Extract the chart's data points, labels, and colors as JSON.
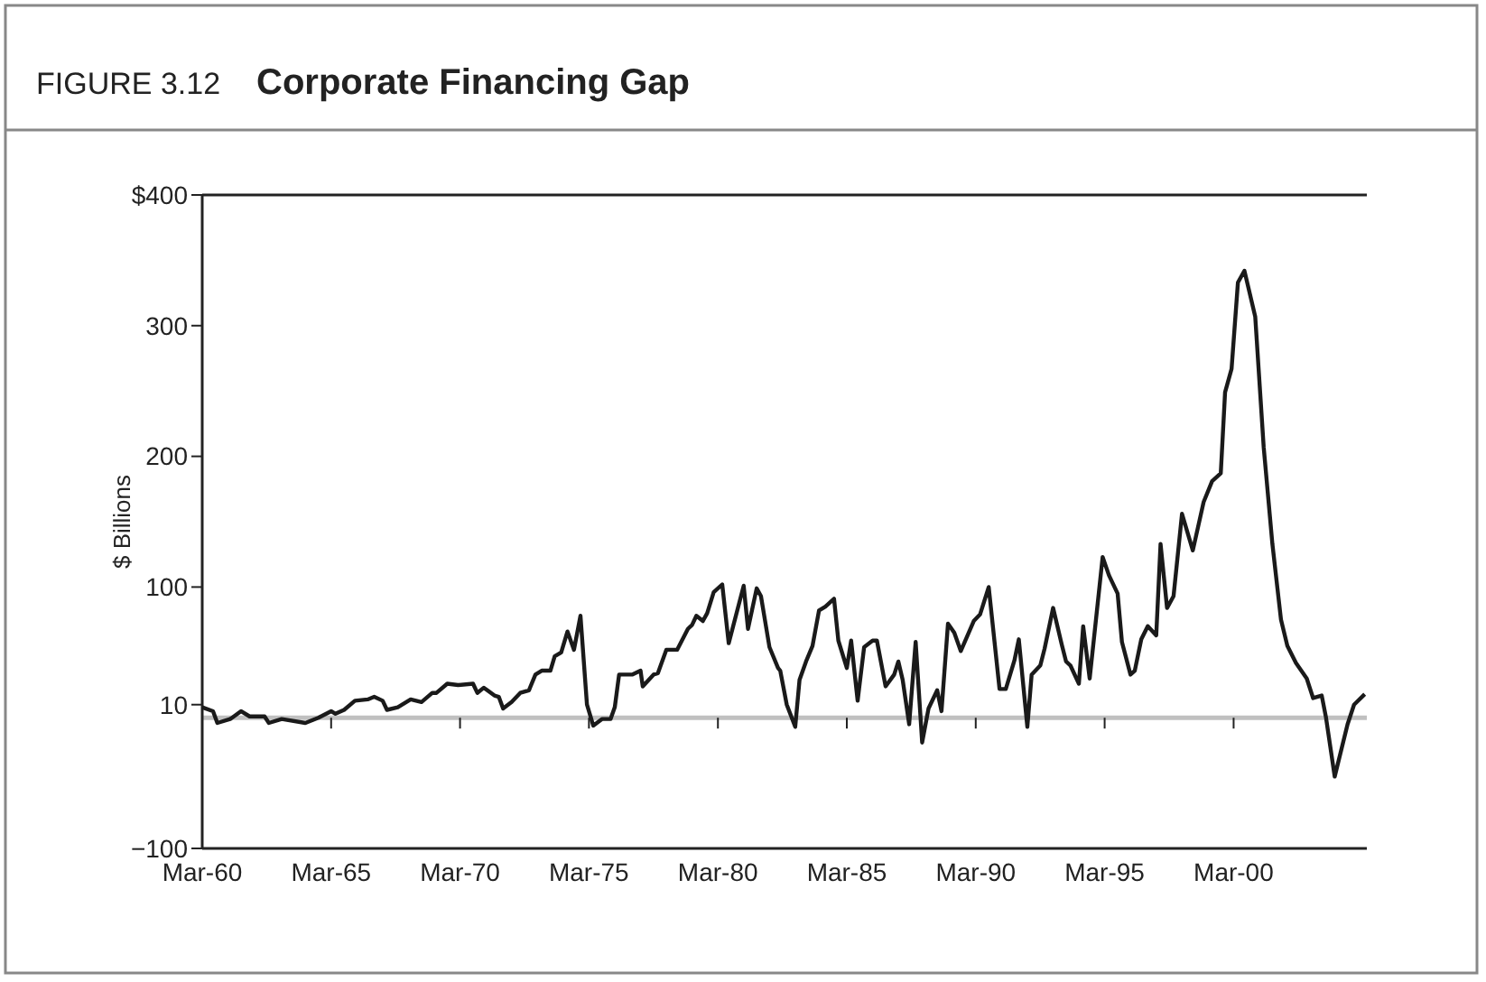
{
  "chart_data": {
    "type": "line",
    "title": "Corporate Financing Gap",
    "subtitle": "FIGURE 3.12",
    "ylabel": "$ Billions",
    "x": [
      "1960-03",
      "1960-08",
      "1960-10",
      "1961-04",
      "1961-09",
      "1962-01",
      "1962-08",
      "1962-10",
      "1963-04",
      "1964-03",
      "1964-09",
      "1965-03",
      "1965-05",
      "1965-09",
      "1966-02",
      "1966-08",
      "1966-11",
      "1967-03",
      "1967-05",
      "1967-10",
      "1968-04",
      "1968-09",
      "1969-02",
      "1969-04",
      "1969-09",
      "1970-02",
      "1970-09",
      "1970-11",
      "1971-02",
      "1971-07",
      "1971-09",
      "1971-11",
      "1972-03",
      "1972-07",
      "1972-11",
      "1973-02",
      "1973-05",
      "1973-09",
      "1973-11",
      "1974-02",
      "1974-05",
      "1974-08",
      "1974-11",
      "1975-02",
      "1975-05",
      "1975-09",
      "1976-01",
      "1976-03",
      "1976-05",
      "1976-09",
      "1976-11",
      "1977-03",
      "1977-04",
      "1977-09",
      "1977-11",
      "1978-03",
      "1978-08",
      "1979-01",
      "1979-03",
      "1979-05",
      "1979-08",
      "1979-10",
      "1980-01",
      "1980-05",
      "1980-08",
      "1981-03",
      "1981-05",
      "1981-09",
      "1981-11",
      "1982-03",
      "1982-07",
      "1982-08",
      "1982-11",
      "1983-03",
      "1983-05",
      "1983-08",
      "1983-11",
      "1984-02",
      "1984-05",
      "1984-09",
      "1984-11",
      "1985-03",
      "1985-05",
      "1985-08",
      "1985-11",
      "1986-03",
      "1986-05",
      "1986-09",
      "1987-01",
      "1987-03",
      "1987-05",
      "1987-08",
      "1987-11",
      "1988-02",
      "1988-05",
      "1988-09",
      "1988-11",
      "1989-02",
      "1989-05",
      "1989-08",
      "1990-02",
      "1990-05",
      "1990-09",
      "1991-02",
      "1991-05",
      "1991-09",
      "1991-11",
      "1992-03",
      "1992-05",
      "1992-09",
      "1992-11",
      "1993-03",
      "1993-07",
      "1993-09",
      "1993-11",
      "1994-03",
      "1994-05",
      "1994-08",
      "1995-02",
      "1995-05",
      "1995-09",
      "1995-11",
      "1996-03",
      "1996-05",
      "1996-08",
      "1996-11",
      "1997-03",
      "1997-05",
      "1997-08",
      "1997-11",
      "1998-03",
      "1998-08",
      "1999-01",
      "1999-05",
      "1999-09",
      "1999-11",
      "2000-02",
      "2000-05",
      "2000-08",
      "2001-01",
      "2001-05",
      "2001-09",
      "2002-01",
      "2002-04",
      "2002-08",
      "2003-01",
      "2003-04",
      "2003-08",
      "2003-10",
      "2004-02",
      "2004-08",
      "2004-11",
      "2005-04"
    ],
    "series": [
      {
        "color": "#1a1a1a",
        "values": [
          8,
          5,
          -4,
          -1,
          5,
          1,
          1,
          -4,
          -1,
          -4,
          0,
          5,
          3,
          6,
          13,
          14,
          16,
          13,
          6,
          8,
          14,
          12,
          19,
          19,
          26,
          25,
          26,
          19,
          23,
          17,
          16,
          7,
          12,
          19,
          21,
          33,
          36,
          36,
          47,
          50,
          66,
          52,
          78,
          10,
          -6,
          -1,
          -1,
          8,
          33,
          33,
          33,
          36,
          24,
          33,
          34,
          52,
          52,
          68,
          71,
          78,
          74,
          80,
          96,
          102,
          57,
          101,
          68,
          99,
          93,
          54,
          38,
          36,
          10,
          -7,
          29,
          43,
          55,
          82,
          85,
          91,
          59,
          38,
          59,
          13,
          54,
          59,
          59,
          24,
          33,
          43,
          29,
          -5,
          58,
          -19,
          7,
          21,
          5,
          72,
          65,
          51,
          74,
          79,
          100,
          22,
          22,
          44,
          60,
          -7,
          33,
          40,
          53,
          84,
          56,
          43,
          40,
          26,
          70,
          30,
          123,
          109,
          95,
          58,
          33,
          36,
          60,
          70,
          63,
          133,
          84,
          93,
          156,
          128,
          165,
          181,
          187,
          249,
          267,
          333,
          342,
          307,
          207,
          133,
          75,
          55,
          42,
          30,
          15,
          17,
          0,
          -45,
          -5,
          10,
          18
        ]
      }
    ],
    "xlim": [
      "1960-03",
      "2005-05"
    ],
    "xticks": [
      {
        "value": "1960-03",
        "label": "Mar-60"
      },
      {
        "value": "1965-03",
        "label": "Mar-65"
      },
      {
        "value": "1970-03",
        "label": "Mar-70"
      },
      {
        "value": "1975-03",
        "label": "Mar-75"
      },
      {
        "value": "1980-03",
        "label": "Mar-80"
      },
      {
        "value": "1985-03",
        "label": "Mar-85"
      },
      {
        "value": "1990-03",
        "label": "Mar-90"
      },
      {
        "value": "1995-03",
        "label": "Mar-95"
      },
      {
        "value": "2000-03",
        "label": "Mar-00"
      }
    ],
    "ylim": [
      -100,
      400
    ],
    "yticks": [
      {
        "value": -100,
        "label": "−100"
      },
      10,
      100,
      200,
      300,
      {
        "value": 400,
        "label": "$400"
      }
    ],
    "ref_lines": [
      {
        "axis": "y",
        "value": 0,
        "color": "#c0c0c0"
      }
    ],
    "grid": false,
    "marker": "none",
    "line_style": "solid"
  }
}
